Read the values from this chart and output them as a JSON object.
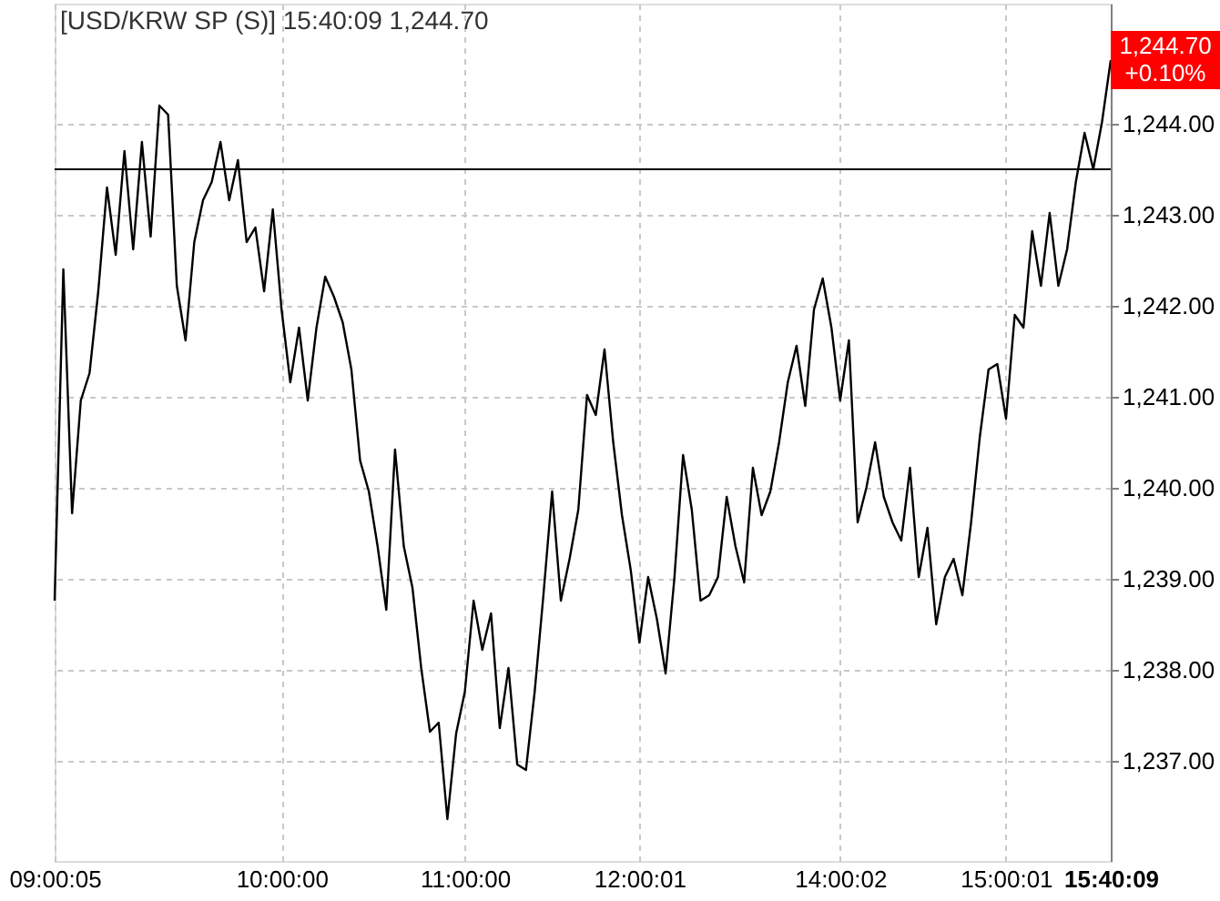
{
  "chart_data": {
    "type": "line",
    "title": "[USD/KRW SP (S)] 15:40:09 1,244.70",
    "categories": [
      "09:00:05",
      null,
      null,
      null,
      null,
      null,
      null,
      null,
      null,
      null,
      null,
      null,
      null,
      null,
      null,
      null,
      null,
      null,
      null,
      null,
      null,
      null,
      null,
      null,
      null,
      null,
      "10:00:00",
      null,
      null,
      null,
      null,
      null,
      null,
      null,
      null,
      null,
      null,
      null,
      null,
      null,
      null,
      null,
      null,
      null,
      null,
      null,
      null,
      "11:00:00",
      null,
      null,
      null,
      null,
      null,
      null,
      null,
      null,
      null,
      null,
      null,
      null,
      null,
      null,
      null,
      null,
      null,
      null,
      null,
      "12:00:01",
      null,
      null,
      null,
      null,
      null,
      null,
      null,
      null,
      null,
      null,
      null,
      null,
      null,
      null,
      null,
      null,
      null,
      null,
      null,
      null,
      null,
      null,
      "14:00:02",
      null,
      null,
      null,
      null,
      null,
      null,
      null,
      null,
      null,
      null,
      null,
      null,
      null,
      null,
      null,
      null,
      null,
      null,
      "15:00:01",
      null,
      null,
      null,
      null,
      null,
      null,
      null,
      null,
      null,
      null,
      null,
      "15:40:09"
    ],
    "series": [
      {
        "color": "#000000",
        "values": [
          1238.76,
          1242.4,
          1239.72,
          1240.96,
          1241.26,
          1242.16,
          1243.3,
          1242.56,
          1243.7,
          1242.62,
          1243.8,
          1242.76,
          1244.2,
          1244.1,
          1242.22,
          1241.62,
          1242.7,
          1243.16,
          1243.36,
          1243.8,
          1243.16,
          1243.6,
          1242.7,
          1242.86,
          1242.16,
          1243.06,
          1241.96,
          1241.16,
          1241.76,
          1240.96,
          1241.76,
          1242.32,
          1242.1,
          1241.82,
          1241.3,
          1240.3,
          1239.96,
          1239.36,
          1238.66,
          1240.42,
          1239.36,
          1238.9,
          1238.02,
          1237.32,
          1237.42,
          1236.36,
          1237.3,
          1237.76,
          1238.76,
          1238.22,
          1238.62,
          1237.36,
          1238.02,
          1236.96,
          1236.9,
          1237.76,
          1238.82,
          1239.96,
          1238.76,
          1239.22,
          1239.76,
          1241.02,
          1240.8,
          1241.52,
          1240.5,
          1239.7,
          1239.1,
          1238.3,
          1239.02,
          1238.56,
          1237.96,
          1239.0,
          1240.36,
          1239.76,
          1238.76,
          1238.82,
          1239.02,
          1239.9,
          1239.36,
          1238.96,
          1240.22,
          1239.7,
          1239.96,
          1240.5,
          1241.16,
          1241.56,
          1240.9,
          1241.96,
          1242.3,
          1241.76,
          1240.96,
          1241.62,
          1239.62,
          1240.0,
          1240.5,
          1239.9,
          1239.62,
          1239.42,
          1240.22,
          1239.02,
          1239.56,
          1238.5,
          1239.02,
          1239.22,
          1238.82,
          1239.62,
          1240.56,
          1241.3,
          1241.36,
          1240.76,
          1241.9,
          1241.76,
          1242.82,
          1242.22,
          1243.02,
          1242.22,
          1242.62,
          1243.36,
          1243.9,
          1243.5,
          1244.02,
          1244.7
        ]
      }
    ],
    "ylim": [
      1235.9,
      1245.32
    ],
    "yticks": [
      {
        "value": 1237,
        "label": "1,237.00"
      },
      {
        "value": 1238,
        "label": "1,238.00"
      },
      {
        "value": 1239,
        "label": "1,239.00"
      },
      {
        "value": 1240,
        "label": "1,240.00"
      },
      {
        "value": 1241,
        "label": "1,241.00"
      },
      {
        "value": 1242,
        "label": "1,242.00"
      },
      {
        "value": 1243,
        "label": "1,243.00"
      },
      {
        "value": 1244,
        "label": "1,244.00"
      }
    ],
    "ref_lines": [
      {
        "axis": "y",
        "value": 1243.5,
        "color": "#000000"
      }
    ],
    "annotations": [
      {
        "text": "1,244.70",
        "x": "15:40:09",
        "y": 1244.7
      },
      {
        "text": "+0.10%",
        "x": "15:40:09",
        "y": 1244.7
      }
    ],
    "grid": true,
    "line_style": "solid"
  }
}
